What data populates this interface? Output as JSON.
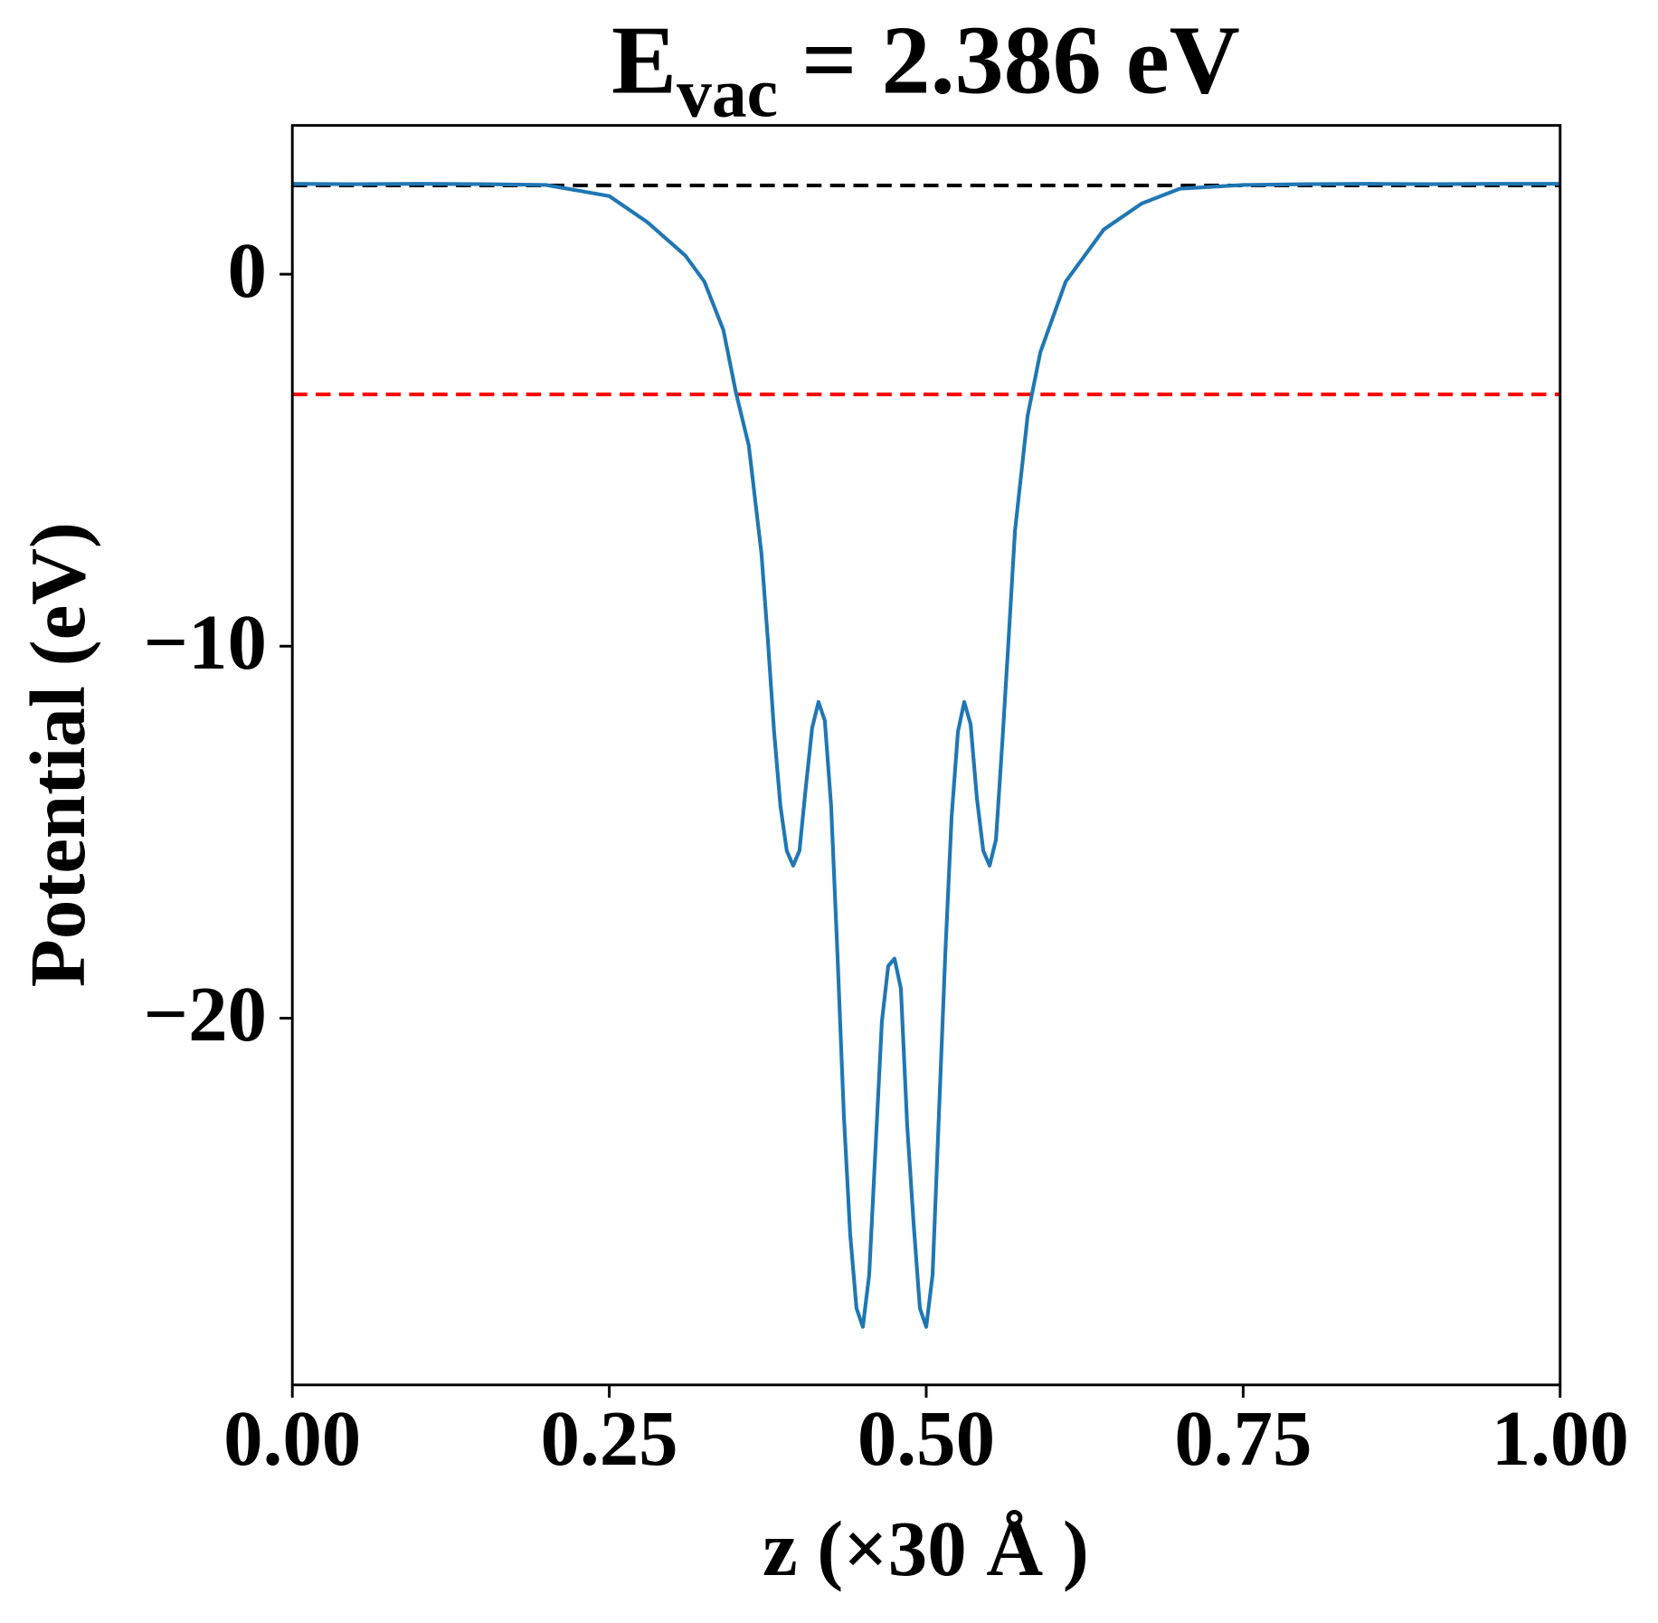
{
  "chart_data": {
    "type": "line",
    "title": {
      "main": "E",
      "sub": "vac",
      "rest": "= 2.386 eV"
    },
    "xlabel": "z (×30 Å )",
    "ylabel": "Potential (eV)",
    "x": [
      0,
      0.05,
      0.1,
      0.15,
      0.2,
      0.25,
      0.28,
      0.31,
      0.325,
      0.34,
      0.35,
      0.36,
      0.37,
      0.375,
      0.38,
      0.385,
      0.39,
      0.395,
      0.4,
      0.405,
      0.41,
      0.415,
      0.42,
      0.425,
      0.43,
      0.435,
      0.44,
      0.445,
      0.45,
      0.455,
      0.46,
      0.465,
      0.47,
      0.475,
      0.48,
      0.485,
      0.49,
      0.495,
      0.5,
      0.505,
      0.51,
      0.515,
      0.52,
      0.525,
      0.53,
      0.535,
      0.54,
      0.545,
      0.55,
      0.555,
      0.56,
      0.565,
      0.57,
      0.58,
      0.59,
      0.61,
      0.64,
      0.67,
      0.7,
      0.75,
      0.8,
      0.85,
      0.9,
      0.95,
      1.0
    ],
    "series": [
      {
        "color": "#1f77b4",
        "values": [
          2.43,
          2.42,
          2.43,
          2.42,
          2.4,
          2.1,
          1.4,
          0.5,
          -0.2,
          -1.5,
          -3.2,
          -4.6,
          -7.5,
          -9.8,
          -12.3,
          -14.3,
          -15.5,
          -15.9,
          -15.5,
          -13.8,
          -12.2,
          -11.5,
          -12.0,
          -14.3,
          -18.3,
          -22.6,
          -25.8,
          -27.8,
          -28.3,
          -26.9,
          -23.5,
          -20.1,
          -18.6,
          -18.4,
          -19.2,
          -22.9,
          -25.5,
          -27.8,
          -28.3,
          -26.9,
          -22.6,
          -18.3,
          -14.6,
          -12.3,
          -11.5,
          -12.1,
          -14.1,
          -15.5,
          -15.9,
          -15.2,
          -12.6,
          -9.8,
          -6.9,
          -3.8,
          -2.1,
          -0.2,
          1.2,
          1.9,
          2.3,
          2.4,
          2.42,
          2.43,
          2.42,
          2.43,
          2.43
        ]
      }
    ],
    "hlines": [
      {
        "value": 2.386,
        "color": "#000000"
      },
      {
        "value": -3.23,
        "color": "#ff0000"
      }
    ],
    "xlim": [
      0,
      1
    ],
    "xticks": [
      {
        "value": 0,
        "label": "0.00"
      },
      {
        "value": 0.25,
        "label": "0.25"
      },
      {
        "value": 0.5,
        "label": "0.50"
      },
      {
        "value": 0.75,
        "label": "0.75"
      },
      {
        "value": 1,
        "label": "1.00"
      }
    ],
    "ylim": [
      -29.86,
      4.0
    ],
    "yticks": [
      {
        "value": -20,
        "label": "−20"
      },
      {
        "value": -10,
        "label": "−10"
      },
      0
    ]
  }
}
